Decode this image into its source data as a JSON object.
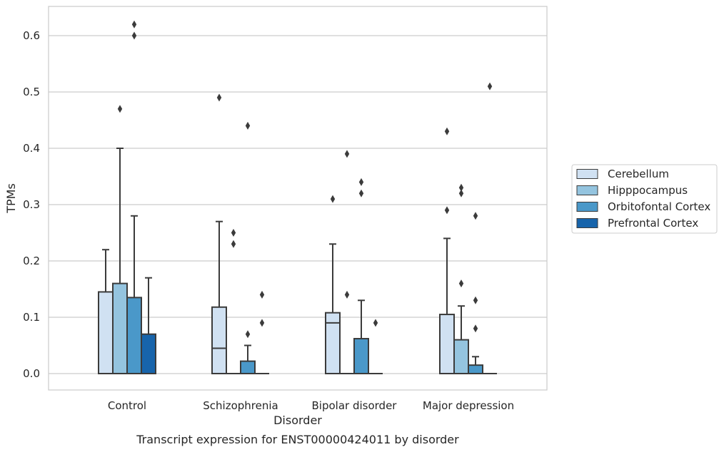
{
  "chart_data": {
    "type": "box",
    "title": "",
    "caption": "Transcript expression for ENST00000424011 by disorder",
    "xlabel": "Disorder",
    "ylabel": "TPMs",
    "ylim": [
      -0.03,
      0.65
    ],
    "yticks": [
      "0.0",
      "0.1",
      "0.2",
      "0.3",
      "0.4",
      "0.5",
      "0.6"
    ],
    "ytick_values": [
      0.0,
      0.1,
      0.2,
      0.3,
      0.4,
      0.5,
      0.6
    ],
    "grid": "horizontal",
    "legend_position": "right",
    "categories": [
      "Control",
      "Schizophrenia",
      "Bipolar disorder",
      "Major depression"
    ],
    "series": [
      {
        "name": "Cerebellum",
        "color": "#d0e1f2",
        "boxes": [
          {
            "q1": 0.0,
            "median": 0.0,
            "q3": 0.145,
            "whisker_low": 0.0,
            "whisker_high": 0.22,
            "outliers": []
          },
          {
            "q1": 0.0,
            "median": 0.045,
            "q3": 0.118,
            "whisker_low": 0.0,
            "whisker_high": 0.27,
            "outliers": [
              0.49
            ]
          },
          {
            "q1": 0.0,
            "median": 0.09,
            "q3": 0.108,
            "whisker_low": 0.0,
            "whisker_high": 0.23,
            "outliers": [
              0.31
            ]
          },
          {
            "q1": 0.0,
            "median": 0.0,
            "q3": 0.105,
            "whisker_low": 0.0,
            "whisker_high": 0.24,
            "outliers": [
              0.29,
              0.43
            ]
          }
        ]
      },
      {
        "name": "Hipppocampus",
        "color": "#94c4df",
        "boxes": [
          {
            "q1": 0.0,
            "median": 0.0,
            "q3": 0.16,
            "whisker_low": 0.0,
            "whisker_high": 0.4,
            "outliers": [
              0.47
            ]
          },
          {
            "q1": 0.0,
            "median": 0.0,
            "q3": 0.0,
            "whisker_low": 0.0,
            "whisker_high": 0.0,
            "outliers": [
              0.23,
              0.25
            ]
          },
          {
            "q1": 0.0,
            "median": 0.0,
            "q3": 0.0,
            "whisker_low": 0.0,
            "whisker_high": 0.0,
            "outliers": [
              0.14,
              0.39
            ]
          },
          {
            "q1": 0.0,
            "median": 0.0,
            "q3": 0.06,
            "whisker_low": 0.0,
            "whisker_high": 0.12,
            "outliers": [
              0.16,
              0.32,
              0.33
            ]
          }
        ]
      },
      {
        "name": "Orbitofontal Cortex",
        "color": "#4a98c9",
        "boxes": [
          {
            "q1": 0.0,
            "median": 0.0,
            "q3": 0.135,
            "whisker_low": 0.0,
            "whisker_high": 0.28,
            "outliers": [
              0.6,
              0.62
            ]
          },
          {
            "q1": 0.0,
            "median": 0.0,
            "q3": 0.022,
            "whisker_low": 0.0,
            "whisker_high": 0.05,
            "outliers": [
              0.07,
              0.44
            ]
          },
          {
            "q1": 0.0,
            "median": 0.0,
            "q3": 0.062,
            "whisker_low": 0.0,
            "whisker_high": 0.13,
            "outliers": [
              0.32,
              0.34
            ]
          },
          {
            "q1": 0.0,
            "median": 0.0,
            "q3": 0.015,
            "whisker_low": 0.0,
            "whisker_high": 0.03,
            "outliers": [
              0.08,
              0.13,
              0.28
            ]
          }
        ]
      },
      {
        "name": "Prefrontal Cortex",
        "color": "#1764ab",
        "boxes": [
          {
            "q1": 0.0,
            "median": 0.0,
            "q3": 0.07,
            "whisker_low": 0.0,
            "whisker_high": 0.17,
            "outliers": []
          },
          {
            "q1": 0.0,
            "median": 0.0,
            "q3": 0.0,
            "whisker_low": 0.0,
            "whisker_high": 0.0,
            "outliers": [
              0.09,
              0.14
            ]
          },
          {
            "q1": 0.0,
            "median": 0.0,
            "q3": 0.0,
            "whisker_low": 0.0,
            "whisker_high": 0.0,
            "outliers": [
              0.09
            ]
          },
          {
            "q1": 0.0,
            "median": 0.0,
            "q3": 0.0,
            "whisker_low": 0.0,
            "whisker_high": 0.0,
            "outliers": [
              0.51
            ]
          }
        ]
      }
    ]
  }
}
